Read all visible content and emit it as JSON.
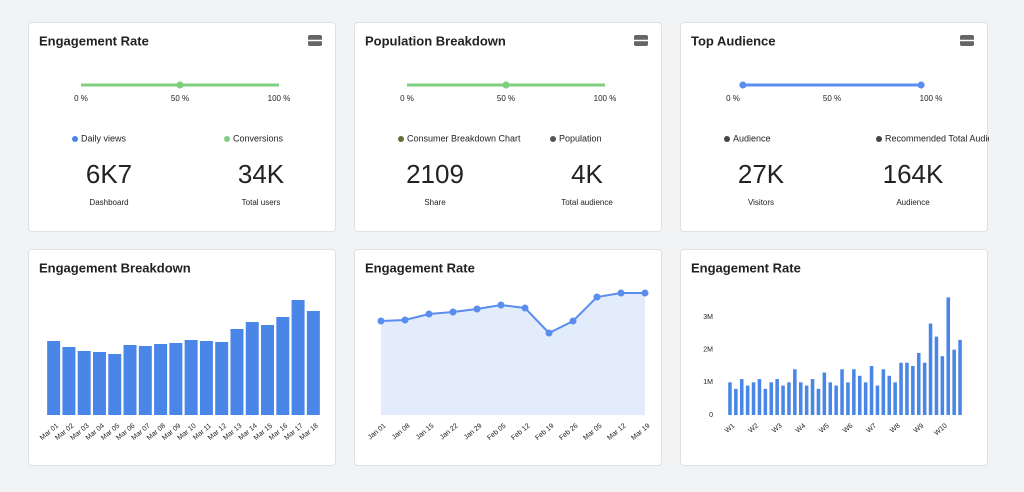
{
  "kpi_cards": [
    {
      "title": "Engagement Rate",
      "slider": {
        "color": "#7fcf7f",
        "ticks": [
          {
            "value": 0,
            "label": "0 %"
          },
          {
            "value": 50,
            "label": "50 %"
          },
          {
            "value": 100,
            "label": "100 %"
          }
        ],
        "handles": [
          50
        ]
      },
      "metrics": [
        {
          "legend": "Daily views",
          "color": "#4a86e8",
          "value": "6K7",
          "caption": "Dashboard"
        },
        {
          "legend": "Conversions",
          "color": "#7fcf7f",
          "value": "34K",
          "caption": "Total users"
        }
      ]
    },
    {
      "title": "Population Breakdown",
      "slider": {
        "color": "#7fcf7f",
        "ticks": [
          {
            "value": 0,
            "label": "0 %"
          },
          {
            "value": 50,
            "label": "50 %"
          },
          {
            "value": 100,
            "label": "100 %"
          }
        ],
        "handles": [
          50
        ]
      },
      "metrics": [
        {
          "legend": "Consumer Breakdown Chart",
          "color": "#6b6b3a",
          "value": "2109",
          "caption": "Share"
        },
        {
          "legend": "Population",
          "color": "#555555",
          "value": "4K",
          "caption": "Total audience"
        }
      ]
    },
    {
      "title": "Top Audience",
      "slider": {
        "color": "#5b8def",
        "ticks": [
          {
            "value": 0,
            "label": "0 %"
          },
          {
            "value": 50,
            "label": "50 %"
          },
          {
            "value": 100,
            "label": "100 %"
          }
        ],
        "handles": [
          5,
          95
        ]
      },
      "metrics": [
        {
          "legend": "Audience",
          "color": "#444444",
          "value": "27K",
          "caption": "Visitors"
        },
        {
          "legend": "Recommended Total Audience",
          "color": "#444444",
          "value": "164K",
          "caption": "Audience"
        }
      ]
    }
  ],
  "chart_data": [
    {
      "type": "bar",
      "title": "Engagement Breakdown",
      "color": "#4a86e8",
      "ylim": [
        0,
        130
      ],
      "categories": [
        "Mar 01",
        "Mar 02",
        "Mar 03",
        "Mar 04",
        "Mar 05",
        "Mar 06",
        "Mar 07",
        "Mar 08",
        "Mar 09",
        "Mar 10",
        "Mar 11",
        "Mar 12",
        "Mar 13",
        "Mar 14",
        "Mar 15",
        "Mar 16",
        "Mar 17",
        "Mar 18"
      ],
      "values": [
        74,
        68,
        64,
        63,
        61,
        70,
        69,
        71,
        72,
        75,
        74,
        73,
        86,
        93,
        90,
        98,
        115,
        104
      ]
    },
    {
      "type": "line",
      "title": "Engagement Rate",
      "color": "#5b8def",
      "ylim": [
        0,
        130
      ],
      "categories": [
        "Jan 01",
        "Jan 08",
        "Jan 15",
        "Jan 22",
        "Jan 29",
        "Feb 05",
        "Feb 12",
        "Feb 19",
        "Feb 26",
        "Mar 05",
        "Mar 12",
        "Mar 19"
      ],
      "values": [
        94,
        95,
        101,
        103,
        106,
        110,
        107,
        82,
        94,
        118,
        122,
        122
      ]
    },
    {
      "type": "bar",
      "title": "Engagement Rate",
      "color": "#4a86e8",
      "ylim": [
        0,
        3.6
      ],
      "yticks": [
        {
          "value": 0,
          "label": "0"
        },
        {
          "value": 1,
          "label": "1M"
        },
        {
          "value": 2,
          "label": "2M"
        },
        {
          "value": 3,
          "label": "3M"
        }
      ],
      "categories": [
        "W1",
        null,
        null,
        null,
        "W2",
        null,
        null,
        null,
        "W3",
        null,
        null,
        null,
        "W4",
        null,
        null,
        null,
        "W5",
        null,
        null,
        null,
        "W6",
        null,
        null,
        null,
        "W7",
        null,
        null,
        null,
        "W8",
        null,
        null,
        null,
        "W9",
        null,
        null,
        null,
        "W10",
        null,
        null,
        null
      ],
      "values": [
        1.0,
        0.8,
        1.1,
        0.9,
        1.0,
        1.1,
        0.8,
        1.0,
        1.1,
        0.9,
        1.0,
        1.4,
        1.0,
        0.9,
        1.1,
        0.8,
        1.3,
        1.0,
        0.9,
        1.4,
        1.0,
        1.4,
        1.2,
        1.0,
        1.5,
        0.9,
        1.4,
        1.2,
        1.0,
        1.6,
        1.6,
        1.5,
        1.9,
        1.6,
        2.8,
        2.4,
        1.8,
        3.6,
        2.0,
        2.3
      ]
    }
  ]
}
